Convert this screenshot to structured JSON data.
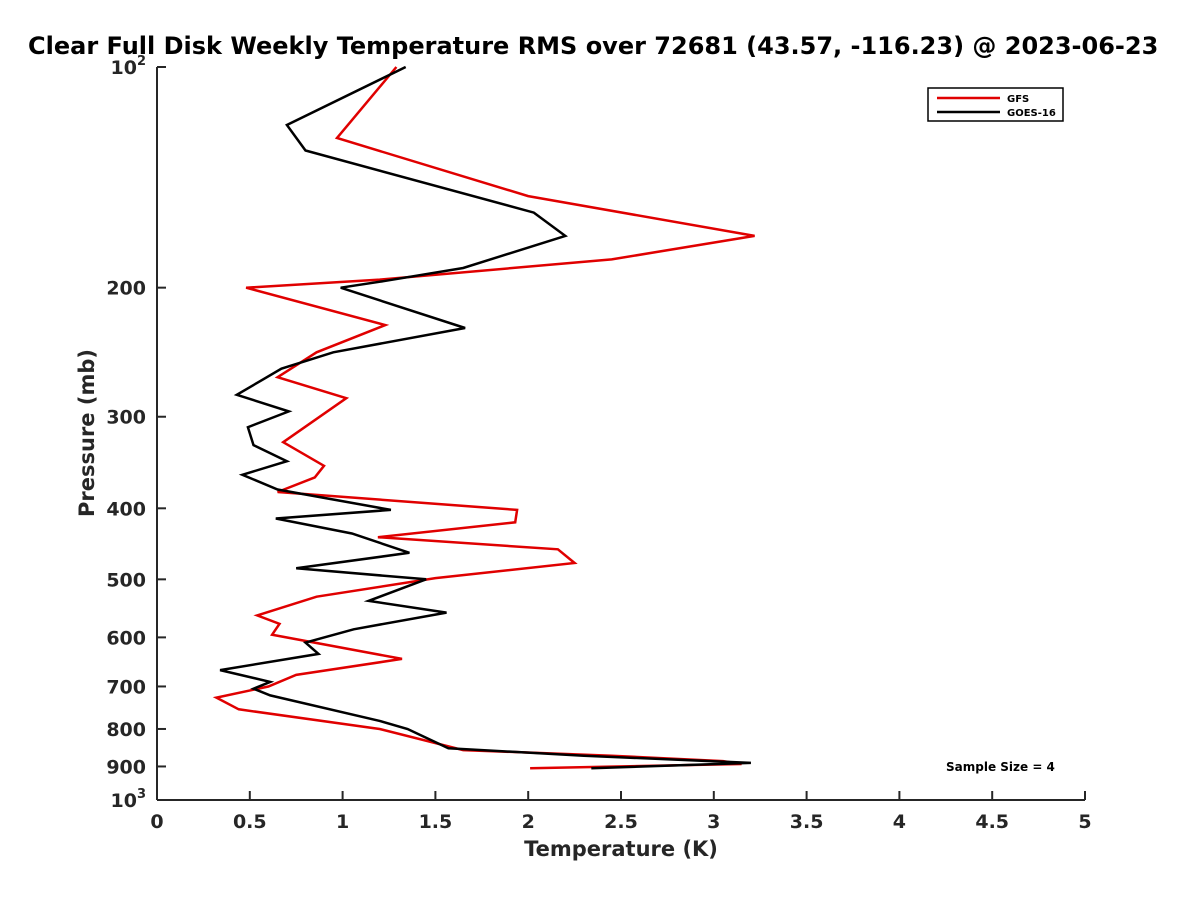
{
  "chart_data": {
    "type": "line",
    "title": "Clear Full Disk Weekly Temperature RMS over 72681 (43.57, -116.23) @ 2023-06-23",
    "xlabel": "Temperature (K)",
    "ylabel": "Pressure (mb)",
    "xlim": [
      0,
      5
    ],
    "ylim": [
      100,
      1000
    ],
    "y_scale": "log",
    "y_reversed": true,
    "x_ticks": [
      "0",
      "0.5",
      "1",
      "1.5",
      "2",
      "2.5",
      "3",
      "3.5",
      "4",
      "4.5",
      "5"
    ],
    "y_ticks": [
      {
        "base": "10",
        "exp": "2"
      },
      {
        "base": "200",
        "exp": ""
      },
      {
        "base": "300",
        "exp": ""
      },
      {
        "base": "400",
        "exp": ""
      },
      {
        "base": "500",
        "exp": ""
      },
      {
        "base": "600",
        "exp": ""
      },
      {
        "base": "700",
        "exp": ""
      },
      {
        "base": "800",
        "exp": ""
      },
      {
        "base": "900",
        "exp": ""
      },
      {
        "base": "10",
        "exp": "3"
      }
    ],
    "legend_position": "top-right",
    "annotation": "Sample Size = 4",
    "series": [
      {
        "name": "GFS",
        "color": "#e00000",
        "points": [
          [
            1.29,
            100
          ],
          [
            0.97,
            125
          ],
          [
            2.0,
            150
          ],
          [
            3.22,
            170
          ],
          [
            2.45,
            183
          ],
          [
            1.2,
            195
          ],
          [
            0.48,
            200
          ],
          [
            1.23,
            225
          ],
          [
            0.86,
            245
          ],
          [
            0.65,
            265
          ],
          [
            1.02,
            283
          ],
          [
            0.68,
            325
          ],
          [
            0.9,
            350
          ],
          [
            0.85,
            363
          ],
          [
            0.65,
            380
          ],
          [
            1.94,
            402
          ],
          [
            1.93,
            418
          ],
          [
            1.19,
            438
          ],
          [
            2.16,
            455
          ],
          [
            2.25,
            475
          ],
          [
            1.5,
            498
          ],
          [
            0.86,
            528
          ],
          [
            0.54,
            560
          ],
          [
            0.66,
            575
          ],
          [
            0.62,
            595
          ],
          [
            1.32,
            642
          ],
          [
            0.75,
            675
          ],
          [
            0.6,
            700
          ],
          [
            0.32,
            725
          ],
          [
            0.44,
            752
          ],
          [
            1.2,
            800
          ],
          [
            1.65,
            855
          ],
          [
            2.45,
            870
          ],
          [
            3.05,
            885
          ],
          [
            3.15,
            893
          ],
          [
            2.01,
            905
          ]
        ]
      },
      {
        "name": "GOES-16",
        "color": "#000000",
        "points": [
          [
            1.34,
            100
          ],
          [
            0.7,
            120
          ],
          [
            0.8,
            130
          ],
          [
            2.03,
            158
          ],
          [
            2.2,
            170
          ],
          [
            1.65,
            188
          ],
          [
            1.22,
            196
          ],
          [
            0.99,
            200
          ],
          [
            1.66,
            227
          ],
          [
            0.95,
            245
          ],
          [
            0.67,
            258
          ],
          [
            0.43,
            280
          ],
          [
            0.71,
            295
          ],
          [
            0.49,
            310
          ],
          [
            0.52,
            328
          ],
          [
            0.7,
            345
          ],
          [
            0.46,
            360
          ],
          [
            0.65,
            377
          ],
          [
            1.26,
            402
          ],
          [
            0.64,
            413
          ],
          [
            1.05,
            433
          ],
          [
            1.36,
            460
          ],
          [
            0.75,
            483
          ],
          [
            1.45,
            500
          ],
          [
            1.14,
            535
          ],
          [
            1.56,
            555
          ],
          [
            1.06,
            585
          ],
          [
            0.8,
            610
          ],
          [
            0.87,
            632
          ],
          [
            0.34,
            665
          ],
          [
            0.61,
            690
          ],
          [
            0.52,
            705
          ],
          [
            0.61,
            720
          ],
          [
            1.2,
            780
          ],
          [
            1.35,
            800
          ],
          [
            1.57,
            850
          ],
          [
            2.3,
            870
          ],
          [
            3.2,
            890
          ],
          [
            2.34,
            905
          ]
        ]
      }
    ]
  }
}
